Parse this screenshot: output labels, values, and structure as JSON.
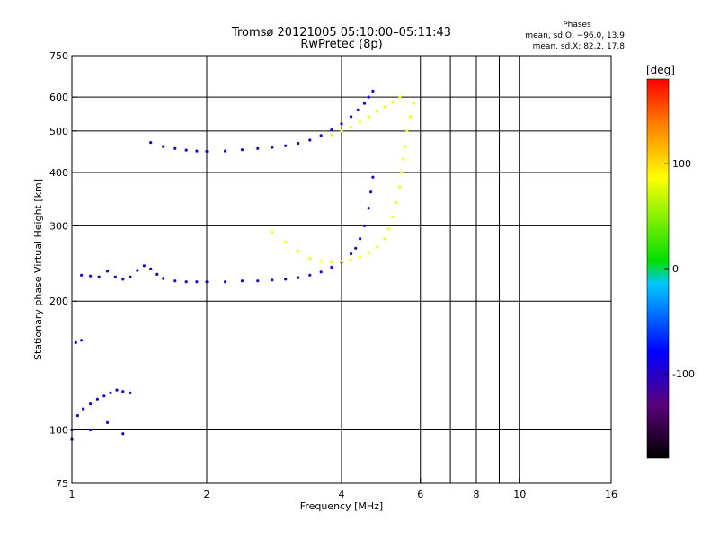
{
  "chart_data": {
    "type": "scatter",
    "title": "Tromsø 20121005 05:10:00–05:11:43",
    "subtitle": "RwPretec (8p)",
    "xlabel": "Frequency [MHz]",
    "ylabel": "Stationary phase Virtual Height [km]",
    "x_scale": "log",
    "y_scale": "log",
    "xlim": [
      1,
      16
    ],
    "ylim": [
      75,
      750
    ],
    "x_ticks": [
      1,
      2,
      4,
      6,
      8,
      10,
      16
    ],
    "y_ticks": [
      75,
      100,
      200,
      300,
      400,
      500,
      600,
      750
    ],
    "x_gridlines": [
      2,
      4,
      6,
      7,
      8,
      9,
      10
    ],
    "y_gridlines": [
      100,
      200,
      300,
      400,
      500,
      600
    ],
    "grid": true,
    "stats": {
      "heading": "Phases",
      "line_o": "mean, sd,O: −96.0, 13.9",
      "line_x": "mean, sd,X:  82.2, 17.8"
    },
    "colorbar": {
      "label": "[deg]",
      "range": [
        -180,
        180
      ],
      "ticks": [
        -100,
        0,
        100
      ],
      "colors": [
        "#000000",
        "#5a007a",
        "#0000ff",
        "#00c8ff",
        "#00e000",
        "#ffff00",
        "#ff8000",
        "#ff0000"
      ]
    },
    "series": [
      {
        "trace": "o-mode F-region trace",
        "phase_deg": -100,
        "points": [
          [
            1.05,
            230
          ],
          [
            1.1,
            229
          ],
          [
            1.15,
            228
          ],
          [
            1.2,
            235
          ],
          [
            1.25,
            228
          ],
          [
            1.3,
            225
          ],
          [
            1.35,
            228
          ],
          [
            1.4,
            236
          ],
          [
            1.45,
            242
          ],
          [
            1.5,
            238
          ],
          [
            1.55,
            231
          ],
          [
            1.6,
            226
          ],
          [
            1.7,
            223
          ],
          [
            1.8,
            222
          ],
          [
            1.9,
            222
          ],
          [
            2.0,
            222
          ],
          [
            2.2,
            222
          ],
          [
            2.4,
            223
          ],
          [
            2.6,
            223
          ],
          [
            2.8,
            224
          ],
          [
            3.0,
            225
          ],
          [
            3.2,
            227
          ],
          [
            3.4,
            230
          ],
          [
            3.6,
            234
          ],
          [
            3.8,
            240
          ],
          [
            4.0,
            247
          ],
          [
            4.2,
            258
          ],
          [
            4.3,
            266
          ],
          [
            4.4,
            280
          ],
          [
            4.5,
            300
          ],
          [
            4.6,
            330
          ],
          [
            4.65,
            360
          ],
          [
            4.7,
            390
          ]
        ]
      },
      {
        "trace": "o-mode upper F-region trace",
        "phase_deg": -100,
        "points": [
          [
            1.5,
            470
          ],
          [
            1.6,
            460
          ],
          [
            1.7,
            455
          ],
          [
            1.8,
            451
          ],
          [
            1.9,
            449
          ],
          [
            2.0,
            448
          ],
          [
            2.2,
            449
          ],
          [
            2.4,
            452
          ],
          [
            2.6,
            455
          ],
          [
            2.8,
            458
          ],
          [
            3.0,
            462
          ],
          [
            3.2,
            468
          ],
          [
            3.4,
            476
          ],
          [
            3.6,
            488
          ],
          [
            3.8,
            503
          ],
          [
            4.0,
            520
          ],
          [
            4.2,
            540
          ],
          [
            4.35,
            560
          ],
          [
            4.5,
            580
          ],
          [
            4.6,
            600
          ],
          [
            4.7,
            620
          ]
        ]
      },
      {
        "trace": "x-mode trace",
        "phase_deg": 82,
        "points": [
          [
            2.8,
            290
          ],
          [
            3.0,
            275
          ],
          [
            3.2,
            262
          ],
          [
            3.4,
            252
          ],
          [
            3.6,
            248
          ],
          [
            3.8,
            247
          ],
          [
            4.0,
            248
          ],
          [
            4.2,
            250
          ],
          [
            4.4,
            254
          ],
          [
            4.6,
            260
          ],
          [
            4.8,
            268
          ],
          [
            5.0,
            280
          ],
          [
            5.1,
            295
          ],
          [
            5.2,
            315
          ],
          [
            5.3,
            340
          ],
          [
            5.4,
            370
          ],
          [
            5.45,
            400
          ],
          [
            5.5,
            430
          ],
          [
            5.55,
            460
          ],
          [
            5.6,
            500
          ],
          [
            5.7,
            540
          ],
          [
            5.8,
            580
          ]
        ]
      },
      {
        "trace": "x-mode upper trace",
        "phase_deg": 82,
        "points": [
          [
            3.8,
            490
          ],
          [
            4.0,
            500
          ],
          [
            4.2,
            510
          ],
          [
            4.4,
            525
          ],
          [
            4.6,
            540
          ],
          [
            4.8,
            555
          ],
          [
            5.0,
            570
          ],
          [
            5.2,
            585
          ],
          [
            5.4,
            600
          ]
        ]
      },
      {
        "trace": "low-frequency spread echoes",
        "phase_deg": -100,
        "points": [
          [
            1.0,
            100
          ],
          [
            1.03,
            108
          ],
          [
            1.06,
            112
          ],
          [
            1.1,
            115
          ],
          [
            1.14,
            118
          ],
          [
            1.18,
            120
          ],
          [
            1.22,
            122
          ],
          [
            1.26,
            124
          ],
          [
            1.3,
            123
          ],
          [
            1.35,
            122
          ],
          [
            1.0,
            95
          ],
          [
            1.1,
            100
          ],
          [
            1.2,
            104
          ],
          [
            1.3,
            98
          ],
          [
            1.02,
            160
          ],
          [
            1.05,
            162
          ]
        ]
      }
    ]
  }
}
